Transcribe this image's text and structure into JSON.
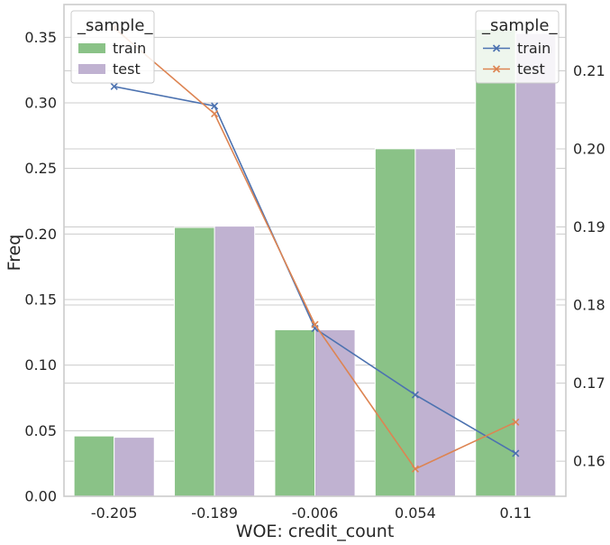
{
  "chart_data": {
    "type": "bar+line",
    "xlabel": "WOE: credit_count",
    "ylabel": "Freq",
    "categories": [
      "-0.205",
      "-0.189",
      "-0.006",
      "0.054",
      "0.11"
    ],
    "bars": {
      "legend_title": "_sample_",
      "legend_position": "top-left",
      "series": [
        {
          "name": "train",
          "color": "#8ac287",
          "values": [
            0.046,
            0.205,
            0.127,
            0.265,
            0.356
          ]
        },
        {
          "name": "test",
          "color": "#c0b2d1",
          "values": [
            0.045,
            0.206,
            0.127,
            0.265,
            0.353
          ]
        }
      ]
    },
    "lines": {
      "legend_title": "_sample_",
      "legend_position": "top-right",
      "series": [
        {
          "name": "train",
          "color": "#4c72b0",
          "marker": "x",
          "values": [
            0.208,
            0.2055,
            0.177,
            0.1685,
            0.161
          ]
        },
        {
          "name": "test",
          "color": "#dd8452",
          "marker": "x",
          "values": [
            0.2155,
            0.2045,
            0.1775,
            0.159,
            0.165
          ]
        }
      ]
    },
    "y_left": {
      "ylim": [
        0,
        0.375
      ],
      "ticks": [
        "0.00",
        "0.05",
        "0.10",
        "0.15",
        "0.20",
        "0.25",
        "0.30",
        "0.35"
      ]
    },
    "y_right": {
      "ylim": [
        0.1555,
        0.2185
      ],
      "ticks": [
        "0.16",
        "0.17",
        "0.18",
        "0.19",
        "0.20",
        "0.21"
      ]
    },
    "grid": true
  }
}
